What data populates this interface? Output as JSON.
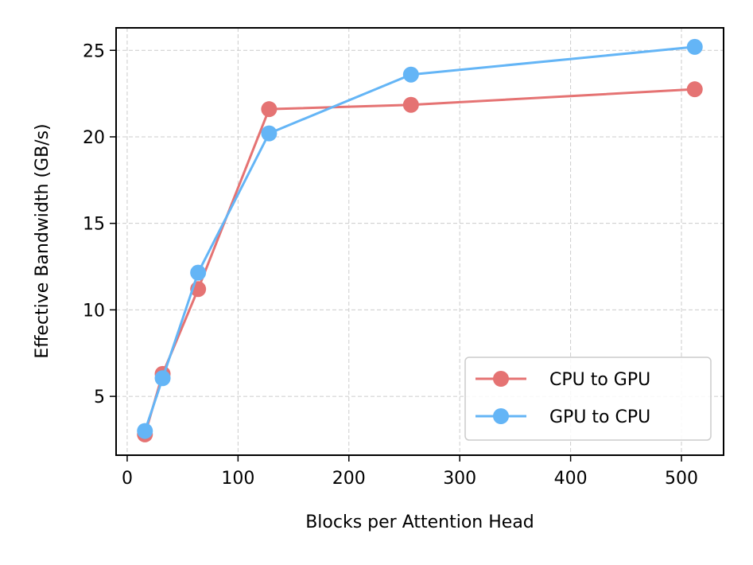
{
  "chart_data": {
    "type": "line",
    "title": "",
    "xlabel": "Blocks per Attention Head",
    "ylabel": "Effective Bandwidth (GB/s)",
    "xlim": [
      -10,
      538
    ],
    "ylim": [
      1.6,
      26.3
    ],
    "xticks": [
      0,
      100,
      200,
      300,
      400,
      500
    ],
    "yticks": [
      5,
      10,
      15,
      20,
      25
    ],
    "grid": true,
    "legend_position": "lower-right",
    "series": [
      {
        "name": "CPU to GPU",
        "color": "#e57373",
        "marker": "circle",
        "x": [
          16,
          32,
          64,
          128,
          256,
          512
        ],
        "y": [
          2.8,
          6.3,
          11.2,
          21.6,
          21.85,
          22.75
        ]
      },
      {
        "name": "GPU to CPU",
        "color": "#64b5f6",
        "marker": "circle",
        "x": [
          16,
          32,
          64,
          128,
          256,
          512
        ],
        "y": [
          3.0,
          6.05,
          12.15,
          20.2,
          23.6,
          25.2
        ]
      }
    ]
  }
}
